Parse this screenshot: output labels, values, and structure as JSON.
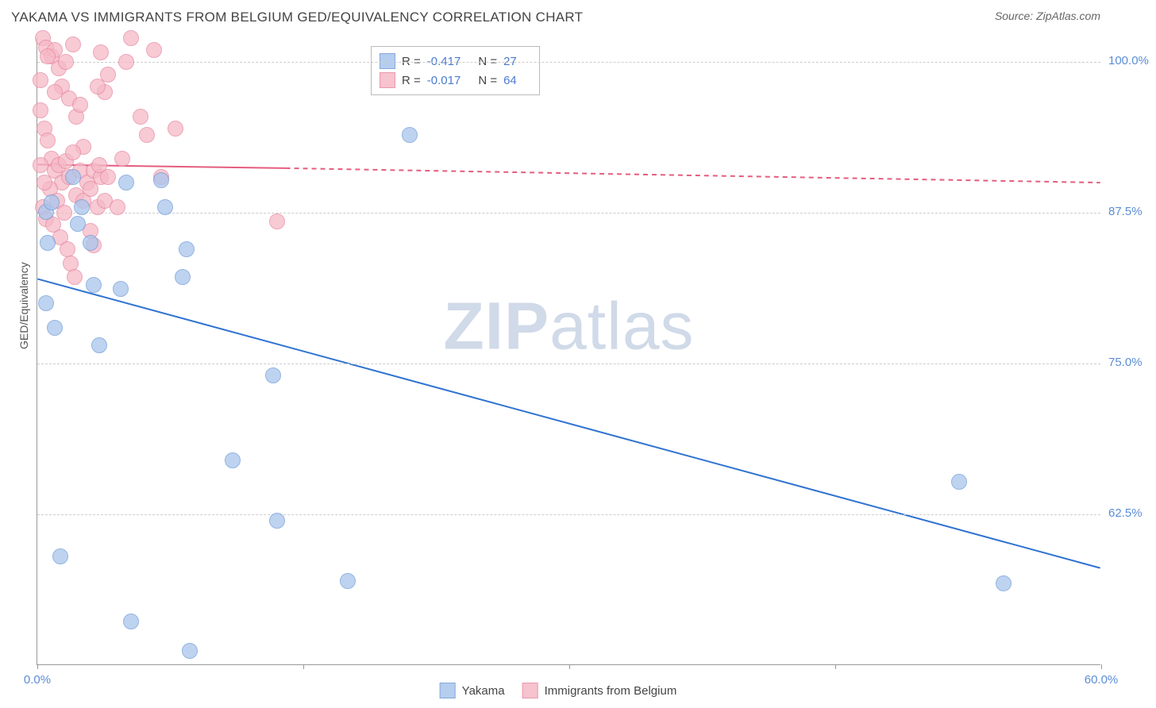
{
  "title": "YAKAMA VS IMMIGRANTS FROM BELGIUM GED/EQUIVALENCY CORRELATION CHART",
  "source_prefix": "Source: ",
  "source_name": "ZipAtlas.com",
  "ylabel": "GED/Equivalency",
  "watermark": {
    "part1": "ZIP",
    "part2": "atlas"
  },
  "colors": {
    "series_a_fill": "#a9c5ec",
    "series_a_stroke": "#6f9bd8",
    "series_b_fill": "#f5b9c6",
    "series_b_stroke": "#e888a1",
    "trend_a": "#2f73d1",
    "trend_b": "#e45d7e",
    "grid": "#cccccc",
    "axis": "#999999",
    "tick_text": "#5b8dd6",
    "background": "#ffffff"
  },
  "chart": {
    "type": "scatter",
    "xlim": [
      0,
      60
    ],
    "ylim": [
      50,
      102
    ],
    "xticks": [
      {
        "x": 0,
        "label": "0.0%"
      },
      {
        "x": 15,
        "label": ""
      },
      {
        "x": 30,
        "label": ""
      },
      {
        "x": 45,
        "label": ""
      },
      {
        "x": 60,
        "label": "60.0%"
      }
    ],
    "yticks": [
      {
        "y": 62.5,
        "label": "62.5%"
      },
      {
        "y": 75.0,
        "label": "75.0%"
      },
      {
        "y": 87.5,
        "label": "87.5%"
      },
      {
        "y": 100.0,
        "label": "100.0%"
      }
    ],
    "marker_radius": 10,
    "trend_line_width": 2
  },
  "stats": {
    "a": {
      "R_label": "R =",
      "R": "-0.417",
      "N_label": "N =",
      "N": "27"
    },
    "b": {
      "R_label": "R =",
      "R": "-0.017",
      "N_label": "N =",
      "N": "64"
    }
  },
  "legend": {
    "a": "Yakama",
    "b": "Immigrants from Belgium"
  },
  "trend_lines": {
    "a": {
      "x1": 0,
      "y1": 82.0,
      "x2": 60,
      "y2": 58.0
    },
    "b": {
      "x1": 0,
      "y1": 91.5,
      "x2_solid": 14,
      "y2_solid": 91.2,
      "x2": 60,
      "y2": 90.0
    }
  },
  "series_a": [
    {
      "x": 0.5,
      "y": 87.6
    },
    {
      "x": 0.8,
      "y": 88.4
    },
    {
      "x": 0.5,
      "y": 80.0
    },
    {
      "x": 1.0,
      "y": 78.0
    },
    {
      "x": 1.3,
      "y": 59.0
    },
    {
      "x": 2.0,
      "y": 90.5
    },
    {
      "x": 2.3,
      "y": 86.6
    },
    {
      "x": 2.5,
      "y": 88.0
    },
    {
      "x": 3.0,
      "y": 85.0
    },
    {
      "x": 3.2,
      "y": 81.5
    },
    {
      "x": 3.5,
      "y": 76.5
    },
    {
      "x": 4.7,
      "y": 81.2
    },
    {
      "x": 5.0,
      "y": 90.0
    },
    {
      "x": 5.3,
      "y": 53.6
    },
    {
      "x": 7.0,
      "y": 90.2
    },
    {
      "x": 7.2,
      "y": 88.0
    },
    {
      "x": 8.2,
      "y": 82.2
    },
    {
      "x": 8.4,
      "y": 84.5
    },
    {
      "x": 8.6,
      "y": 51.2
    },
    {
      "x": 11.0,
      "y": 67.0
    },
    {
      "x": 13.3,
      "y": 74.0
    },
    {
      "x": 13.5,
      "y": 62.0
    },
    {
      "x": 17.5,
      "y": 57.0
    },
    {
      "x": 21.0,
      "y": 94.0
    },
    {
      "x": 52.0,
      "y": 65.2
    },
    {
      "x": 54.5,
      "y": 56.8
    },
    {
      "x": 0.6,
      "y": 85.0
    }
  ],
  "series_b": [
    {
      "x": 0.3,
      "y": 102.0
    },
    {
      "x": 0.5,
      "y": 101.2
    },
    {
      "x": 0.8,
      "y": 100.5
    },
    {
      "x": 1.0,
      "y": 101.0
    },
    {
      "x": 1.2,
      "y": 99.5
    },
    {
      "x": 1.4,
      "y": 98.0
    },
    {
      "x": 1.6,
      "y": 100.0
    },
    {
      "x": 1.8,
      "y": 97.0
    },
    {
      "x": 2.0,
      "y": 101.5
    },
    {
      "x": 2.2,
      "y": 95.5
    },
    {
      "x": 2.4,
      "y": 96.5
    },
    {
      "x": 2.6,
      "y": 93.0
    },
    {
      "x": 0.2,
      "y": 96.0
    },
    {
      "x": 0.4,
      "y": 94.5
    },
    {
      "x": 0.6,
      "y": 93.5
    },
    {
      "x": 0.8,
      "y": 92.0
    },
    {
      "x": 1.0,
      "y": 91.0
    },
    {
      "x": 1.2,
      "y": 91.5
    },
    {
      "x": 1.4,
      "y": 90.0
    },
    {
      "x": 1.6,
      "y": 91.8
    },
    {
      "x": 1.8,
      "y": 90.5
    },
    {
      "x": 2.0,
      "y": 92.5
    },
    {
      "x": 2.2,
      "y": 89.0
    },
    {
      "x": 2.4,
      "y": 91.0
    },
    {
      "x": 2.6,
      "y": 88.5
    },
    {
      "x": 2.8,
      "y": 90.0
    },
    {
      "x": 3.0,
      "y": 89.5
    },
    {
      "x": 3.2,
      "y": 91.0
    },
    {
      "x": 3.4,
      "y": 88.0
    },
    {
      "x": 3.6,
      "y": 90.5
    },
    {
      "x": 3.8,
      "y": 97.5
    },
    {
      "x": 4.0,
      "y": 99.0
    },
    {
      "x": 0.3,
      "y": 88.0
    },
    {
      "x": 0.5,
      "y": 87.0
    },
    {
      "x": 0.7,
      "y": 89.5
    },
    {
      "x": 0.9,
      "y": 86.5
    },
    {
      "x": 1.1,
      "y": 88.5
    },
    {
      "x": 1.3,
      "y": 85.5
    },
    {
      "x": 1.5,
      "y": 87.5
    },
    {
      "x": 1.7,
      "y": 84.5
    },
    {
      "x": 0.2,
      "y": 91.5
    },
    {
      "x": 0.4,
      "y": 90.0
    },
    {
      "x": 3.0,
      "y": 86.0
    },
    {
      "x": 3.2,
      "y": 84.8
    },
    {
      "x": 3.4,
      "y": 98.0
    },
    {
      "x": 3.6,
      "y": 100.8
    },
    {
      "x": 3.8,
      "y": 88.5
    },
    {
      "x": 4.0,
      "y": 90.5
    },
    {
      "x": 4.5,
      "y": 88.0
    },
    {
      "x": 4.8,
      "y": 92.0
    },
    {
      "x": 5.0,
      "y": 100.0
    },
    {
      "x": 5.3,
      "y": 102.0
    },
    {
      "x": 5.8,
      "y": 95.5
    },
    {
      "x": 6.2,
      "y": 94.0
    },
    {
      "x": 6.6,
      "y": 101.0
    },
    {
      "x": 7.0,
      "y": 90.5
    },
    {
      "x": 7.8,
      "y": 94.5
    },
    {
      "x": 1.9,
      "y": 83.3
    },
    {
      "x": 2.1,
      "y": 82.2
    },
    {
      "x": 3.5,
      "y": 91.5
    },
    {
      "x": 13.5,
      "y": 86.8
    },
    {
      "x": 0.2,
      "y": 98.5
    },
    {
      "x": 0.6,
      "y": 100.5
    },
    {
      "x": 1.0,
      "y": 97.5
    }
  ]
}
